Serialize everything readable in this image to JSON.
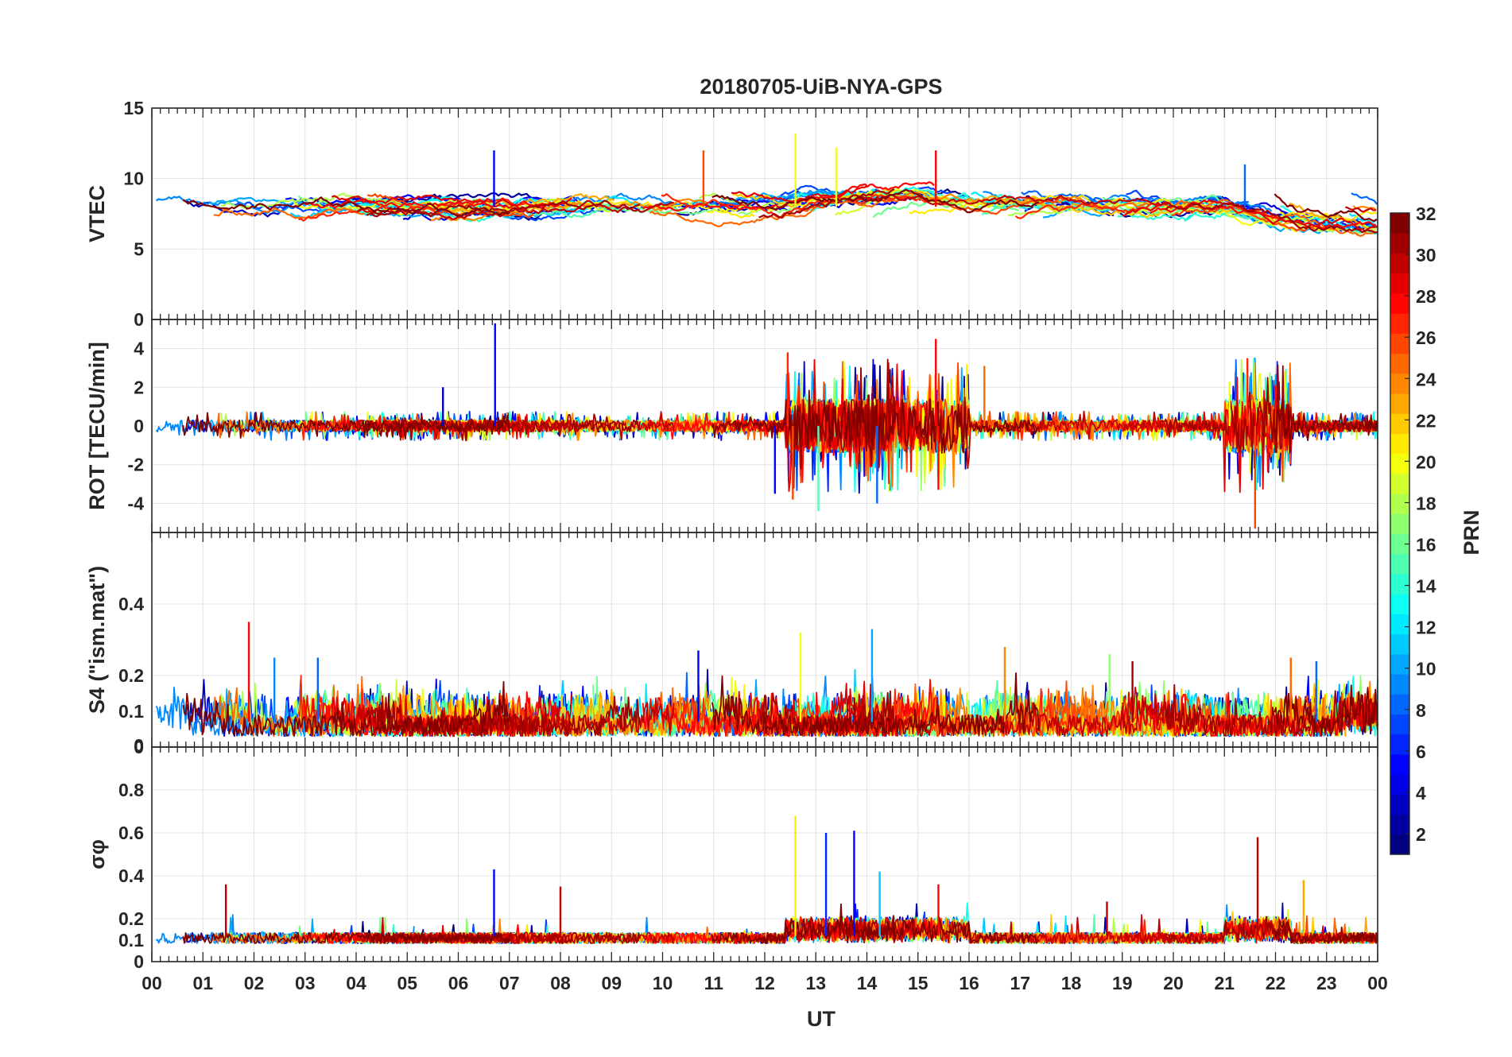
{
  "chart_data": {
    "type": "line",
    "title": "20180705-UiB-NYA-GPS",
    "xlabel": "UT",
    "x_ticks": [
      "00",
      "01",
      "02",
      "03",
      "04",
      "05",
      "06",
      "07",
      "08",
      "09",
      "10",
      "11",
      "12",
      "13",
      "14",
      "15",
      "16",
      "17",
      "18",
      "19",
      "20",
      "21",
      "22",
      "23",
      "00"
    ],
    "x_range_hours": [
      0,
      24
    ],
    "colorbar": {
      "label": "PRN",
      "range": [
        1,
        32
      ],
      "ticks": [
        "2",
        "4",
        "6",
        "8",
        "10",
        "12",
        "14",
        "16",
        "18",
        "20",
        "22",
        "24",
        "26",
        "28",
        "30",
        "32"
      ],
      "colormap": "jet"
    },
    "panels": [
      {
        "name": "vtec",
        "ylabel": "VTEC",
        "ylim": [
          0,
          15
        ],
        "y_ticks": [
          "0",
          "5",
          "10",
          "15"
        ],
        "baseline": 8,
        "noise": 0.35,
        "series_note": "Per-PRN VTEC traces mostly between 6 and 10 TECU; dip toward 4-6 after 21 UT; peaks up to ~13 near 12.5-13 UT",
        "spikes": [
          {
            "hour": 6.7,
            "value": 12,
            "prn": 5
          },
          {
            "hour": 12.6,
            "value": 13.2,
            "prn": 20
          },
          {
            "hour": 13.4,
            "value": 12.2,
            "prn": 20
          },
          {
            "hour": 10.8,
            "value": 12,
            "prn": 26
          },
          {
            "hour": 15.35,
            "value": 12,
            "prn": 28
          },
          {
            "hour": 21.4,
            "value": 11,
            "prn": 8
          }
        ]
      },
      {
        "name": "rot",
        "ylabel": "ROT [TECU/min]",
        "ylim": [
          -5.5,
          5.5
        ],
        "y_ticks": [
          "-4",
          "-2",
          "0",
          "2",
          "4"
        ],
        "y_tick_values": [
          -4,
          -2,
          0,
          2,
          4
        ],
        "baseline": 0,
        "noise": 0.25,
        "series_note": "Rate of TEC mostly within +-0.5; bursts between 12.5-16 UT and 21-22 UT",
        "spikes": [
          {
            "hour": 6.72,
            "value": 5.3,
            "prn": 5
          },
          {
            "hour": 5.7,
            "value": 2.0,
            "prn": 3
          },
          {
            "hour": 12.45,
            "value": 3.8,
            "prn": 27
          },
          {
            "hour": 12.55,
            "value": -3.8,
            "prn": 26
          },
          {
            "hour": 12.2,
            "value": -3.5,
            "prn": 5
          },
          {
            "hour": 13.05,
            "value": -4.4,
            "prn": 15
          },
          {
            "hour": 14.2,
            "value": -4.0,
            "prn": 8
          },
          {
            "hour": 15.35,
            "value": 4.5,
            "prn": 28
          },
          {
            "hour": 15.4,
            "value": -3.3,
            "prn": 28
          },
          {
            "hour": 16.3,
            "value": 3.1,
            "prn": 25
          },
          {
            "hour": 21.45,
            "value": 3.5,
            "prn": 27
          },
          {
            "hour": 21.6,
            "value": -5.3,
            "prn": 26
          },
          {
            "hour": 21.1,
            "value": 2.3,
            "prn": 20
          }
        ]
      },
      {
        "name": "s4",
        "ylabel": "S4 (\"ism.mat\")",
        "ylim": [
          0,
          0.6
        ],
        "y_ticks": [
          "0",
          "0",
          "0.1",
          "0.2",
          "0.4"
        ],
        "y_tick_values": [
          0.0,
          0.005,
          0.1,
          0.2,
          0.4
        ],
        "baseline": 0.07,
        "noise": 0.02,
        "series_note": "Amplitude scintillation index S4 mostly 0.03-0.15 with isolated peaks",
        "spikes": [
          {
            "hour": 1.9,
            "value": 0.35,
            "prn": 28
          },
          {
            "hour": 2.4,
            "value": 0.25,
            "prn": 9
          },
          {
            "hour": 3.25,
            "value": 0.25,
            "prn": 8
          },
          {
            "hour": 10.7,
            "value": 0.27,
            "prn": 4
          },
          {
            "hour": 12.7,
            "value": 0.32,
            "prn": 20
          },
          {
            "hour": 14.1,
            "value": 0.33,
            "prn": 10
          },
          {
            "hour": 16.7,
            "value": 0.28,
            "prn": 24
          },
          {
            "hour": 18.75,
            "value": 0.26,
            "prn": 17
          },
          {
            "hour": 19.2,
            "value": 0.24,
            "prn": 31
          },
          {
            "hour": 22.3,
            "value": 0.25,
            "prn": 25
          },
          {
            "hour": 22.8,
            "value": 0.24,
            "prn": 8
          }
        ]
      },
      {
        "name": "sigma",
        "ylabel": "σφ",
        "ylim": [
          0,
          1.0
        ],
        "y_ticks": [
          "0",
          "0.1",
          "0.2",
          "0.4",
          "0.6",
          "0.8"
        ],
        "y_tick_values": [
          0,
          0.1,
          0.2,
          0.4,
          0.6,
          0.8
        ],
        "baseline": 0.12,
        "noise": 0.015,
        "series_note": "Phase scintillation index mostly ~0.1-0.15; peaks up to ~0.68 near 12.5-14 UT",
        "spikes": [
          {
            "hour": 1.45,
            "value": 0.36,
            "prn": 30
          },
          {
            "hour": 6.7,
            "value": 0.43,
            "prn": 5
          },
          {
            "hour": 8.0,
            "value": 0.35,
            "prn": 30
          },
          {
            "hour": 12.6,
            "value": 0.68,
            "prn": 21
          },
          {
            "hour": 13.2,
            "value": 0.6,
            "prn": 6
          },
          {
            "hour": 13.75,
            "value": 0.61,
            "prn": 5
          },
          {
            "hour": 14.25,
            "value": 0.42,
            "prn": 11
          },
          {
            "hour": 15.4,
            "value": 0.36,
            "prn": 28
          },
          {
            "hour": 18.7,
            "value": 0.28,
            "prn": 30
          },
          {
            "hour": 21.65,
            "value": 0.58,
            "prn": 30
          },
          {
            "hour": 22.55,
            "value": 0.38,
            "prn": 23
          }
        ]
      }
    ]
  }
}
